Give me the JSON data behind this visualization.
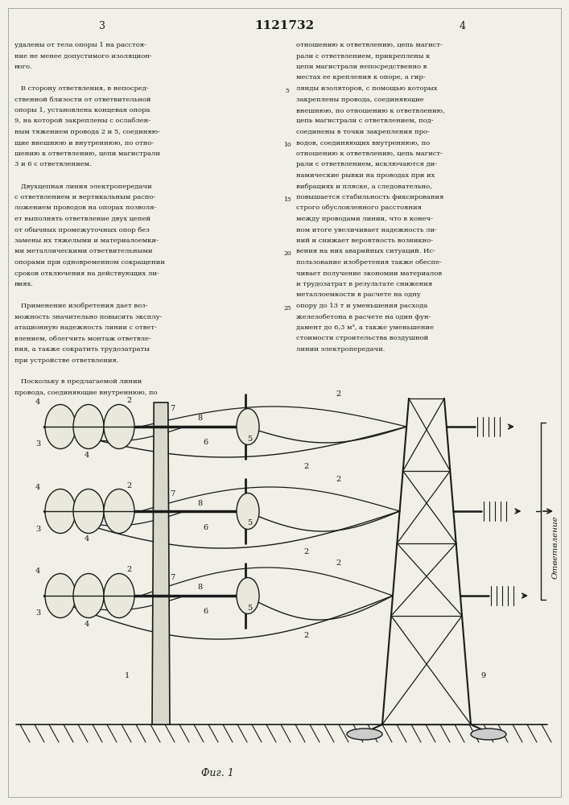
{
  "page_width": 7.07,
  "page_height": 10.0,
  "bg_color": "#f0efe8",
  "line_color": "#1a1a1a",
  "text_color": "#1a1a1a",
  "header_text": "1121732",
  "page_left": "3",
  "page_right": "4",
  "col1_lines": [
    "удалены от тела опоры 1 на расстоя-",
    "ние не менее допустимого изоляцион-",
    "ного.",
    "",
    "   В сторону ответвления, в непосред-",
    "ственной близости от ответвительной",
    "опоры 1, установлена концевая опора",
    "9, на которой закреплены с ослаблен-",
    "ным тяжением провода 2 и 5, соединяю-",
    "щие внешнюю и внутреннюю, по отно-",
    "шению к ответвлению, цепи магистрали",
    "3 и 6 с ответвлением.",
    "",
    "   Двухцепная линия электропередачи",
    "с ответвлением и вертикальным распо-",
    "ложением проводов на опорах позволя-",
    "ет выполнять ответвление двух цепей",
    "от обычных промежуточных опор без",
    "замены их тяжелыми и материалоемки-",
    "ми металлическими ответвительными",
    "опорами при одновременном сокращении",
    "сроков отключения на действующих ли-",
    "ниях.",
    "",
    "   Применение изобретения дает воз-",
    "можность значительно повысить эксплу-",
    "атационную надежность линии с ответ-",
    "влением, облегчить монтаж ответвле-",
    "ния, а также сократить трудозатраты",
    "при устройстве ответвления.",
    "",
    "   Поскольку в предлагаемой линии",
    "провода, соединяющие внутреннюю, по"
  ],
  "col2_lines": [
    "отношению к ответвлению, цепь магист-",
    "рали с ответвлением, прикреплены к",
    "цепи магистрали непосредственно в",
    "местах ее крепления к опоре, а гир-",
    "лянды изоляторов, с помощью которых",
    "закреплены провода, соединяющие",
    "внешнюю, по отношению к ответвлению,",
    "цепь магистрали с ответвлением, под-",
    "соединены в точки закрепления про-",
    "водов, соединяющих внутреннюю, по",
    "отношению к ответвлению, цепь магист-",
    "рали с ответвлением, исключаются ди-",
    "намические рывки на проводах при их",
    "вибрациях и пляске, а следовательно,",
    "повышается стабильность фиксирования",
    "строго обусловленного расстояния",
    "между проводами линии, что в конеч-",
    "ном итоге увеличивает надежность ли-",
    "ний и снижает вероятность возникно-",
    "вения на них аварийных ситуаций. Ис-",
    "пользование изобретения также обеспе-",
    "чивает получение экономии материалов",
    "и трудозатрат в результате снижения",
    "металлоемкости в расчете на одну",
    "опору до 13 т и уменьшения расхода",
    "железобетона в расчете на один фун-",
    "дамент до 6,3 м³, а также уменьшение",
    "стоимости строительства воздушной",
    "линии электропередачи."
  ],
  "fig_caption": "Фиг. 1",
  "line_numbers": [
    5,
    10,
    15,
    20,
    25
  ]
}
